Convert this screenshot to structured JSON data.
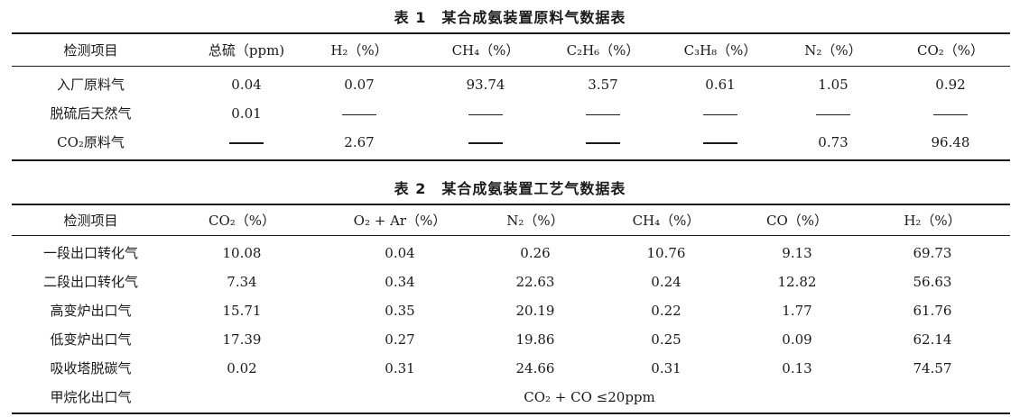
{
  "table1": {
    "caption": "表 1　某合成氨装置原料气数据表",
    "headers": [
      "检测项目",
      "总硫（ppm)",
      "H₂（%）",
      "CH₄（%）",
      "C₂H₆（%）",
      "C₃H₈（%）",
      "N₂（%）",
      "CO₂（%）"
    ],
    "rows": [
      {
        "label": "入厂原料气",
        "values": [
          "0.04",
          "0.07",
          "93.74",
          "3.57",
          "0.61",
          "1.05",
          "0.92"
        ]
      },
      {
        "label": "脱硫后天然气",
        "values": [
          "0.01",
          "——",
          "——",
          "——",
          "——",
          "——",
          "——"
        ]
      },
      {
        "label": "CO₂原料气",
        "values": [
          "——",
          "2.67",
          "——",
          "——",
          "——",
          "0.73",
          "96.48"
        ]
      }
    ]
  },
  "table2": {
    "caption": "表 2　某合成氨装置工艺气数据表",
    "headers": [
      "检测项目",
      "CO₂（%）",
      "O₂ + Ar（%）",
      "N₂（%）",
      "CH₄（%）",
      "CO（%）",
      "H₂（%）"
    ],
    "rows": [
      {
        "label": "一段出口转化气",
        "values": [
          "10.08",
          "0.04",
          "0.26",
          "10.76",
          "9.13",
          "69.73"
        ]
      },
      {
        "label": "二段出口转化气",
        "values": [
          "7.34",
          "0.34",
          "22.63",
          "0.24",
          "12.82",
          "56.63"
        ]
      },
      {
        "label": "高变炉出口气",
        "values": [
          "15.71",
          "0.35",
          "20.19",
          "0.22",
          "1.77",
          "61.76"
        ]
      },
      {
        "label": "低变炉出口气",
        "values": [
          "17.39",
          "0.27",
          "19.86",
          "0.25",
          "0.09",
          "62.14"
        ]
      },
      {
        "label": "吸收塔脱碳气",
        "values": [
          "0.02",
          "0.31",
          "24.66",
          "0.31",
          "0.13",
          "74.57"
        ]
      }
    ],
    "last_row": {
      "label": "甲烷化出口气",
      "note": "CO₂ + CO ≤20ppm"
    }
  }
}
